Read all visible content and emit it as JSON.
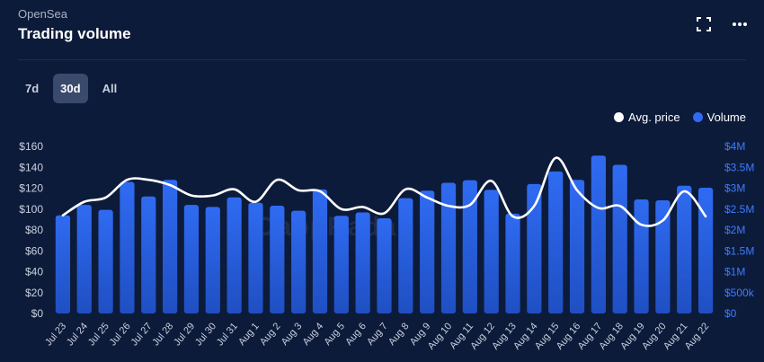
{
  "header": {
    "source": "OpenSea",
    "title": "Trading volume"
  },
  "toolbar": {
    "expand_icon": "expand-icon",
    "menu_icon": "more-horizontal-icon"
  },
  "tabs": [
    {
      "label": "7d",
      "active": false
    },
    {
      "label": "30d",
      "active": true
    },
    {
      "label": "All",
      "active": false
    }
  ],
  "watermark": "DappRadar",
  "colors": {
    "background": "#0d1b3a",
    "bar": "#2f6bf2",
    "line": "#ffffff",
    "right_axis": "#3d7bff",
    "left_axis": "#c9d0de"
  },
  "chart_data": {
    "type": "bar",
    "categories": [
      "Jul 23",
      "Jul 24",
      "Jul 25",
      "Jul 26",
      "Jul 27",
      "Jul 28",
      "Jul 29",
      "Jul 30",
      "Jul 31",
      "Aug 1",
      "Aug 2",
      "Aug 3",
      "Aug 4",
      "Aug 5",
      "Aug 6",
      "Aug 7",
      "Aug 8",
      "Aug 9",
      "Aug 10",
      "Aug 11",
      "Aug 12",
      "Aug 13",
      "Aug 14",
      "Aug 15",
      "Aug 16",
      "Aug 17",
      "Aug 18",
      "Aug 19",
      "Aug 20",
      "Aug 21",
      "Aug 22"
    ],
    "series": [
      {
        "name": "Volume",
        "axis": "right",
        "type": "bar",
        "values": [
          2350000,
          2600000,
          2480000,
          3150000,
          2800000,
          3200000,
          2600000,
          2550000,
          2780000,
          2650000,
          2580000,
          2460000,
          2970000,
          2340000,
          2420000,
          2280000,
          2760000,
          2940000,
          3130000,
          3190000,
          2960000,
          2390000,
          3100000,
          3400000,
          3200000,
          3780000,
          3560000,
          2730000,
          2710000,
          3060000,
          3010000
        ]
      },
      {
        "name": "Avg. price",
        "axis": "left",
        "type": "line",
        "values": [
          94,
          107,
          111,
          128,
          128,
          123,
          113,
          113,
          119,
          107,
          128,
          118,
          117,
          100,
          102,
          96,
          119,
          111,
          103,
          104,
          127,
          93,
          103,
          149,
          118,
          101,
          103,
          85,
          89,
          117,
          93
        ]
      }
    ],
    "left_axis": {
      "ticks": [
        "$0",
        "$20",
        "$40",
        "$60",
        "$80",
        "$100",
        "$120",
        "$140",
        "$160"
      ],
      "range": [
        0,
        160
      ]
    },
    "right_axis": {
      "ticks": [
        "$0",
        "$500k",
        "$1M",
        "$1.5M",
        "$2M",
        "$2.5M",
        "$3M",
        "$3.5M",
        "$4M"
      ],
      "range": [
        0,
        4000000
      ]
    },
    "legend": [
      "Avg. price",
      "Volume"
    ],
    "legend_position": "top-right"
  }
}
